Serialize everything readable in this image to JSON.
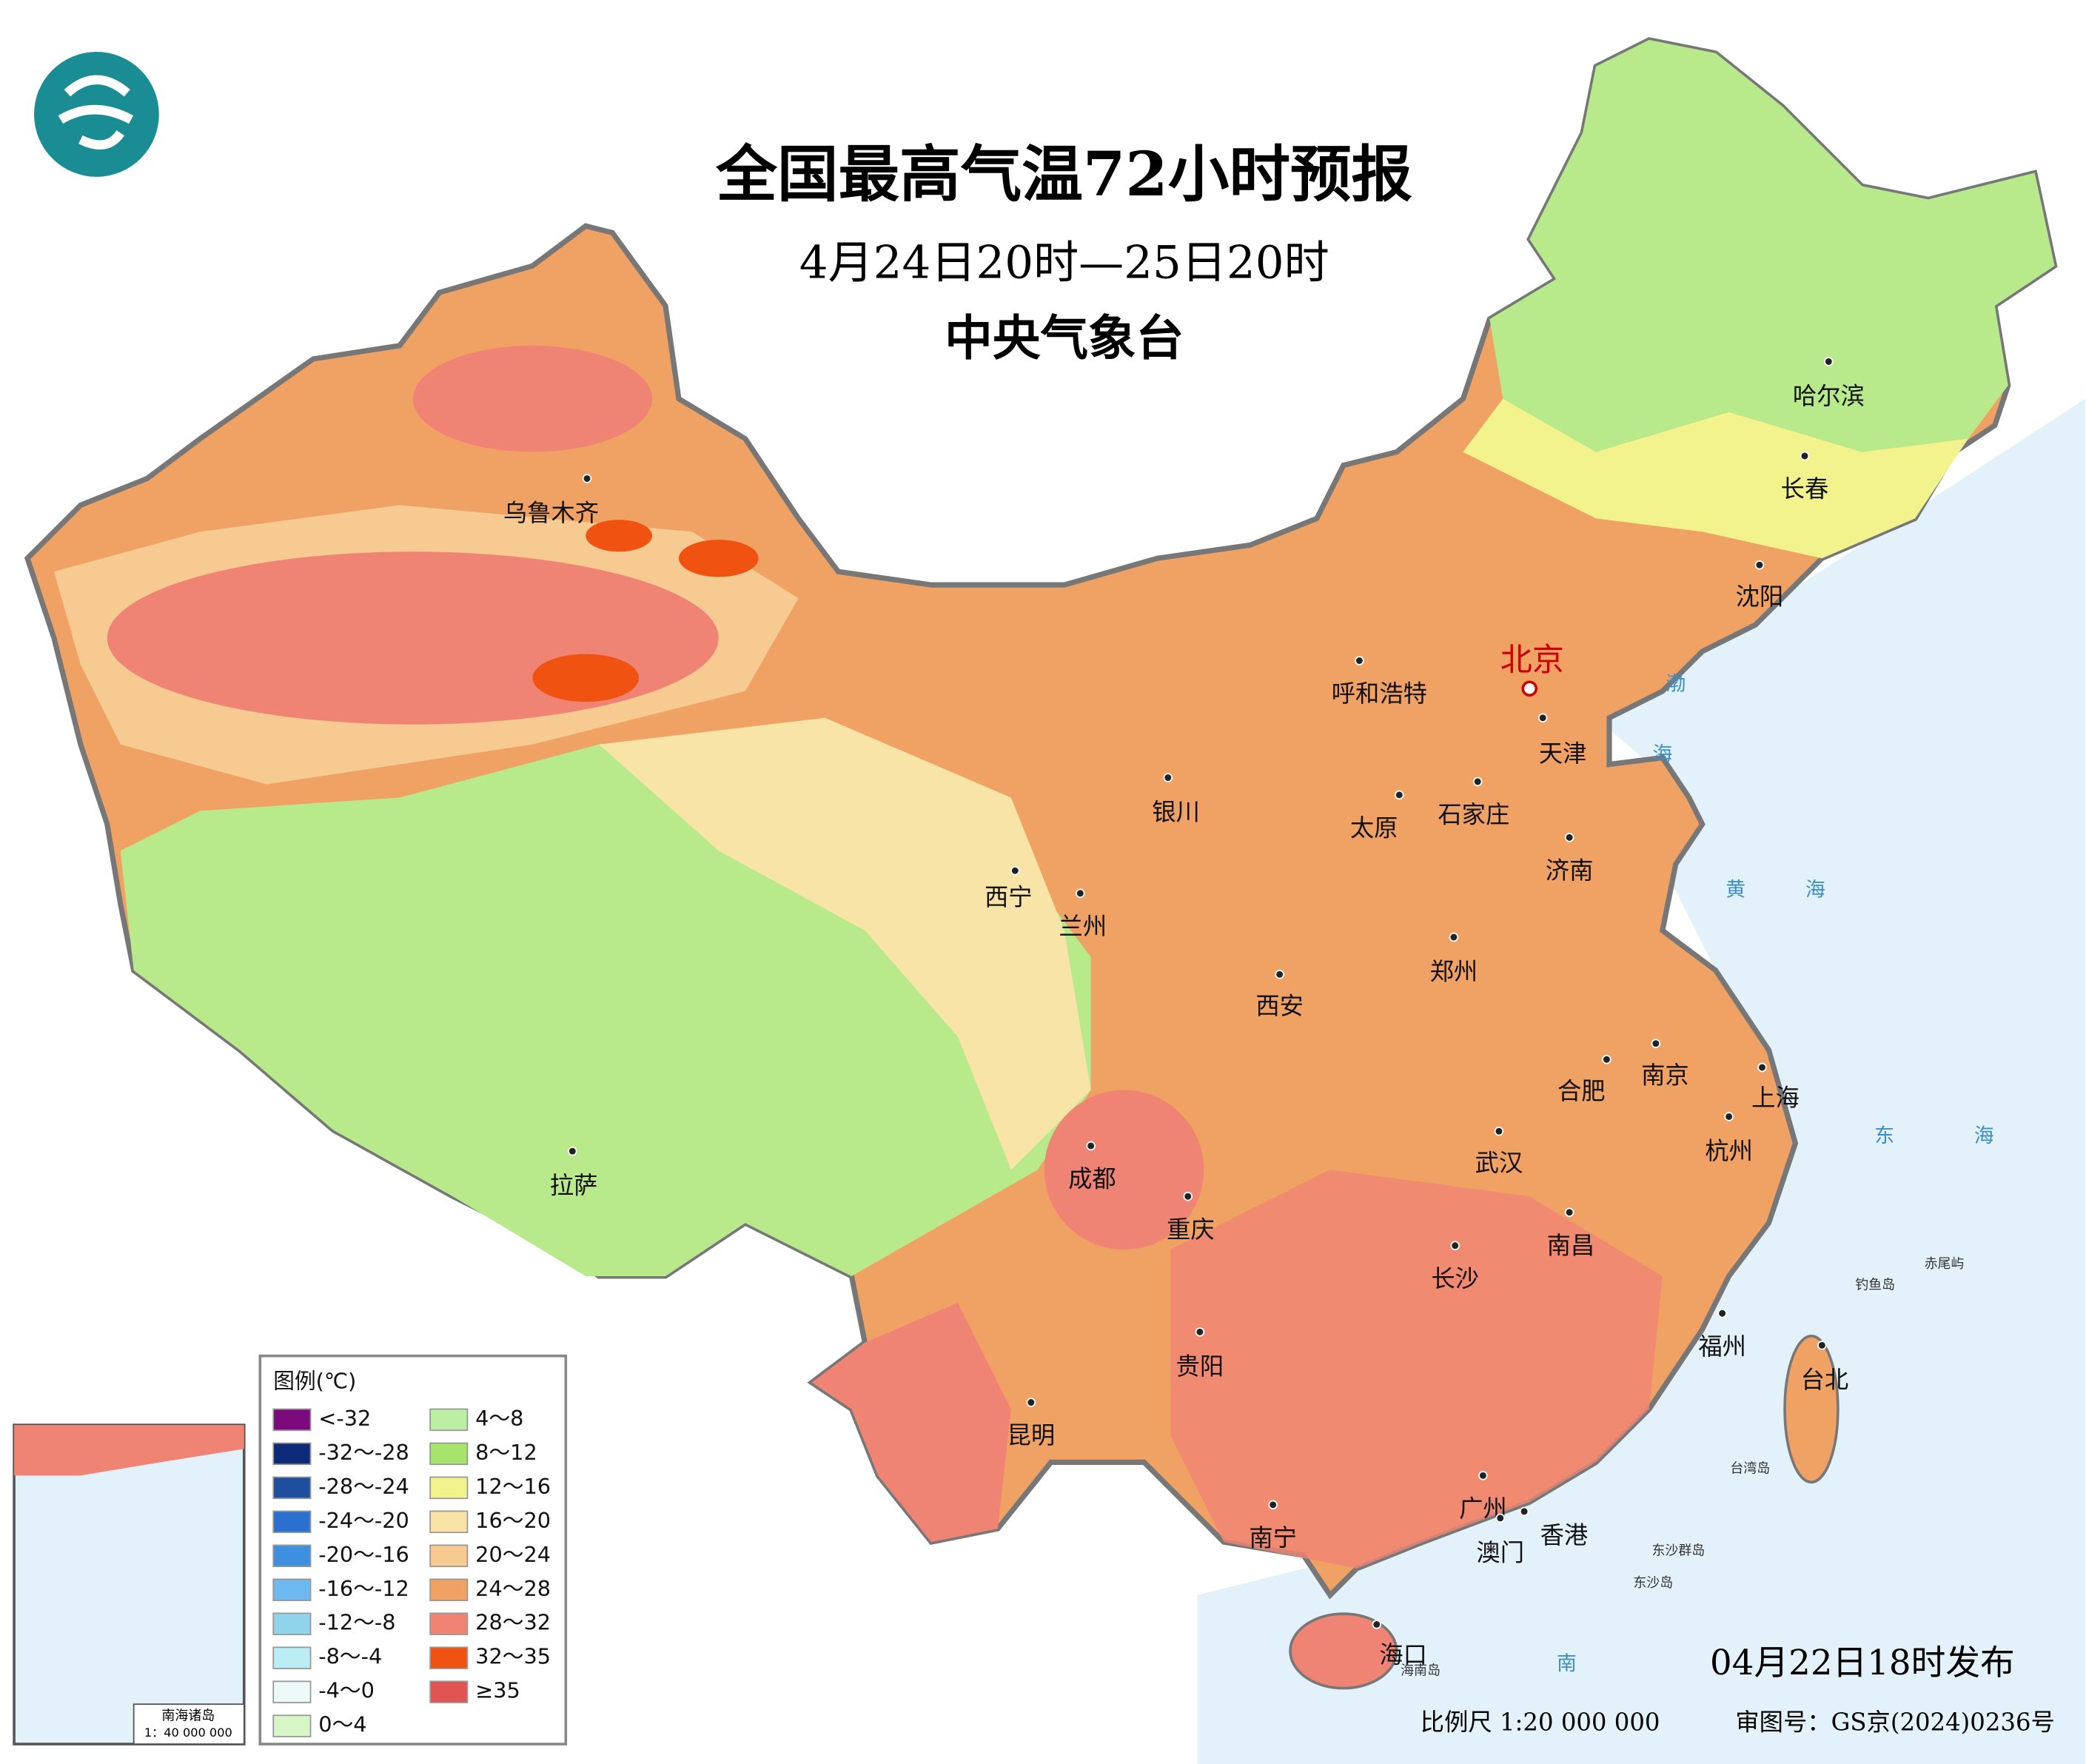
{
  "header": {
    "title": "全国最高气温72小时预报",
    "subtitle": "4月24日20时—25日20时",
    "issuer": "中央气象台"
  },
  "legend": {
    "title": "图例(℃)",
    "items": [
      {
        "label": "<-32",
        "color": "#7d0a7d"
      },
      {
        "label": "-32～-28",
        "color": "#0c2a78"
      },
      {
        "label": "-28～-24",
        "color": "#1e4f9e"
      },
      {
        "label": "-24～-20",
        "color": "#2b6fcf"
      },
      {
        "label": "-20～-16",
        "color": "#3d8fe0"
      },
      {
        "label": "-16～-12",
        "color": "#6db9ef"
      },
      {
        "label": "-12～-8",
        "color": "#8fd4e8"
      },
      {
        "label": "-8～-4",
        "color": "#bbedf4"
      },
      {
        "label": "-4～0",
        "color": "#eefaf8"
      },
      {
        "label": "0～4",
        "color": "#d6f6c6"
      },
      {
        "label": "4～8",
        "color": "#bcefa4"
      },
      {
        "label": "8～12",
        "color": "#a6e46c"
      },
      {
        "label": "12～16",
        "color": "#f2f38c"
      },
      {
        "label": "16～20",
        "color": "#f8e4a6"
      },
      {
        "label": "20～24",
        "color": "#f6ca90"
      },
      {
        "label": "24～28",
        "color": "#f0a264"
      },
      {
        "label": "28～32",
        "color": "#f08474"
      },
      {
        "label": "32～35",
        "color": "#f05212"
      },
      {
        "label": "≥35",
        "color": "#e05454"
      }
    ]
  },
  "capital": "北京",
  "cities": [
    "乌鲁木齐",
    "哈尔滨",
    "长春",
    "沈阳",
    "天津",
    "呼和浩特",
    "银川",
    "太原",
    "石家庄",
    "济南",
    "西宁",
    "兰州",
    "郑州",
    "西安",
    "合肥",
    "南京",
    "上海",
    "杭州",
    "武汉",
    "成都",
    "重庆",
    "拉萨",
    "长沙",
    "南昌",
    "贵阳",
    "福州",
    "台北",
    "昆明",
    "广州",
    "香港",
    "澳门",
    "南宁",
    "海口"
  ],
  "seas": [
    "渤",
    "海",
    "黄",
    "海",
    "东",
    "海",
    "南"
  ],
  "islands": [
    "钓鱼岛",
    "赤尾屿",
    "台湾岛",
    "东沙群岛",
    "东沙岛",
    "海南岛"
  ],
  "inset": {
    "title": "南海诸岛",
    "scale": "1：40 000 000"
  },
  "footer": {
    "issued": "04月22日18时发布",
    "scale": "比例尺 1:20 000 000",
    "approval": "审图号：GS京(2024)0236号"
  }
}
